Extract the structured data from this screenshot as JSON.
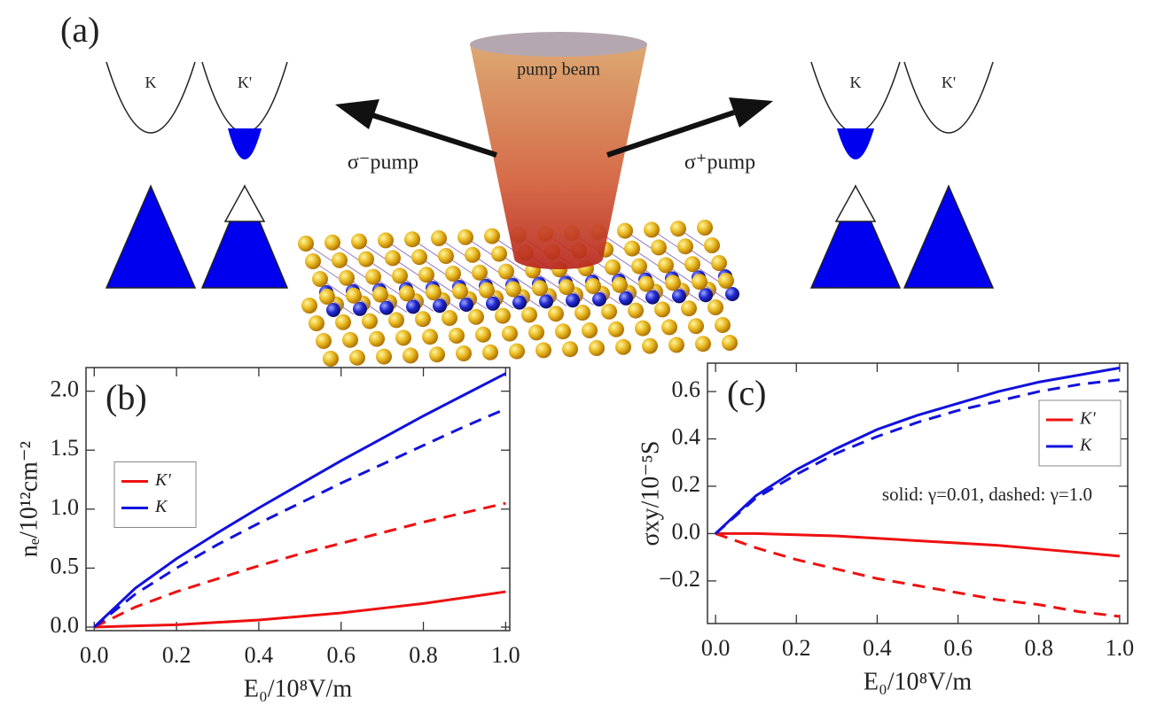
{
  "panel_a": {
    "label": "(a)",
    "left_valleys": [
      "K",
      "K'"
    ],
    "right_valleys": [
      "K",
      "K'"
    ],
    "beam": "pump beam",
    "left_pump": "σ⁻pump",
    "right_pump": "σ⁺pump"
  },
  "chart_data": [
    {
      "type": "line",
      "panel_label": "(b)",
      "xlabel": "E₀/10⁸V/m",
      "ylabel": "nₑ/10¹²cm⁻²",
      "x": [
        0,
        0.1,
        0.2,
        0.3,
        0.4,
        0.5,
        0.6,
        0.7,
        0.8,
        0.9,
        1.0
      ],
      "series": [
        {
          "name": "K'",
          "color": "#ee1111",
          "style": "solid",
          "values": [
            0,
            0.01,
            0.02,
            0.04,
            0.06,
            0.09,
            0.12,
            0.16,
            0.2,
            0.25,
            0.3
          ]
        },
        {
          "name": "K'",
          "color": "#ee1111",
          "style": "dashed",
          "values": [
            0,
            0.17,
            0.3,
            0.41,
            0.52,
            0.62,
            0.71,
            0.8,
            0.89,
            0.97,
            1.05
          ]
        },
        {
          "name": "K",
          "color": "#1111dd",
          "style": "solid",
          "values": [
            0,
            0.33,
            0.58,
            0.8,
            1.01,
            1.21,
            1.41,
            1.6,
            1.79,
            1.97,
            2.15
          ]
        },
        {
          "name": "K",
          "color": "#1111dd",
          "style": "dashed",
          "values": [
            0,
            0.28,
            0.5,
            0.7,
            0.88,
            1.05,
            1.22,
            1.38,
            1.54,
            1.7,
            1.85
          ]
        }
      ],
      "xlim": [
        -0.02,
        1.01
      ],
      "ylim": [
        -0.03,
        2.2
      ],
      "xticks": [
        {
          "value": 0,
          "label": "0.0"
        },
        0.2,
        0.4,
        0.6,
        0.8,
        {
          "value": 1,
          "label": "1.0"
        }
      ],
      "yticks": [
        {
          "value": 0,
          "label": "0.0"
        },
        0.5,
        {
          "value": 1,
          "label": "1.0"
        },
        1.5,
        {
          "value": 2,
          "label": "2.0"
        }
      ],
      "legend": "center left",
      "grid": false
    },
    {
      "type": "line",
      "panel_label": "(c)",
      "xlabel": "E₀/10⁸V/m",
      "ylabel": "σxy/10⁻⁵S",
      "annotation": "solid: γ=0.01, dashed: γ=1.0",
      "x": [
        0,
        0.1,
        0.2,
        0.3,
        0.4,
        0.5,
        0.6,
        0.7,
        0.8,
        0.9,
        1.0
      ],
      "series": [
        {
          "name": "K'",
          "color": "#ee1111",
          "style": "solid",
          "values": [
            0,
            0,
            -0.005,
            -0.01,
            -0.02,
            -0.03,
            -0.04,
            -0.05,
            -0.065,
            -0.08,
            -0.095
          ]
        },
        {
          "name": "K'",
          "color": "#ee1111",
          "style": "dashed",
          "values": [
            0,
            -0.06,
            -0.11,
            -0.15,
            -0.19,
            -0.22,
            -0.25,
            -0.28,
            -0.3,
            -0.33,
            -0.35
          ]
        },
        {
          "name": "K",
          "color": "#1111dd",
          "style": "solid",
          "values": [
            0,
            0.16,
            0.27,
            0.36,
            0.44,
            0.5,
            0.55,
            0.6,
            0.64,
            0.67,
            0.7
          ]
        },
        {
          "name": "K",
          "color": "#1111dd",
          "style": "dashed",
          "values": [
            0,
            0.15,
            0.25,
            0.34,
            0.41,
            0.47,
            0.52,
            0.56,
            0.6,
            0.63,
            0.65
          ]
        }
      ],
      "xlim": [
        -0.02,
        1.02
      ],
      "ylim": [
        -0.38,
        0.72
      ],
      "xticks": [
        {
          "value": 0,
          "label": "0.0"
        },
        0.2,
        0.4,
        0.6,
        0.8,
        {
          "value": 1,
          "label": "1.0"
        }
      ],
      "yticks": [
        {
          "value": -0.2,
          "label": "−0.2"
        },
        {
          "value": 0,
          "label": "0.0"
        },
        0.2,
        0.4,
        0.6
      ],
      "legend": "upper right",
      "grid": false
    }
  ]
}
